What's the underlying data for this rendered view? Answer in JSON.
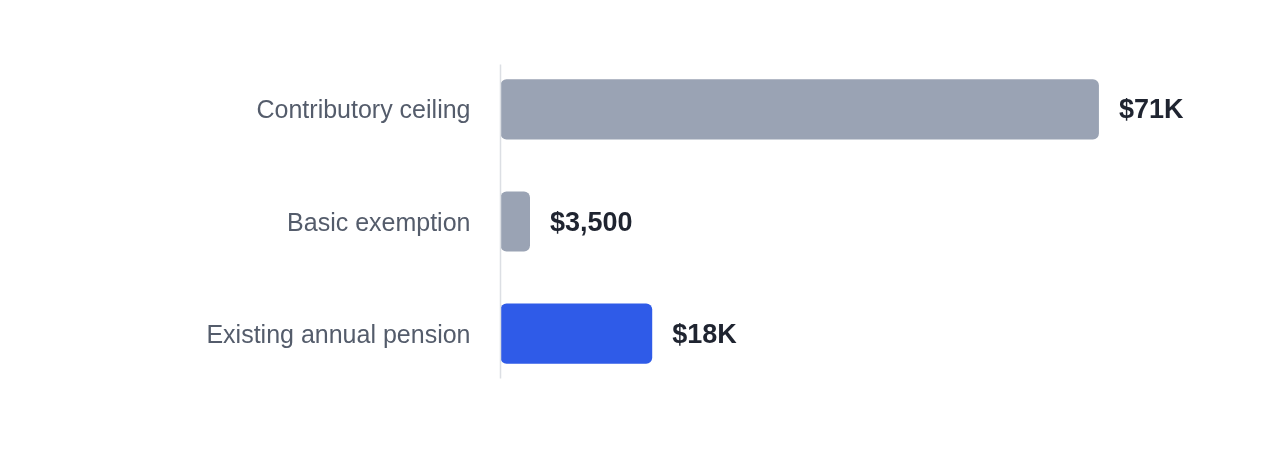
{
  "chart_data": {
    "type": "bar",
    "orientation": "horizontal",
    "categories": [
      "Contributory ceiling",
      "Basic exemption",
      "Existing annual pension"
    ],
    "values": [
      71000,
      3500,
      18000
    ],
    "colors": [
      "#9aa3b4",
      "#9aa3b4",
      "#2f5be8"
    ],
    "value_labels": [
      "$71K",
      "$3,500",
      "$18K"
    ]
  }
}
